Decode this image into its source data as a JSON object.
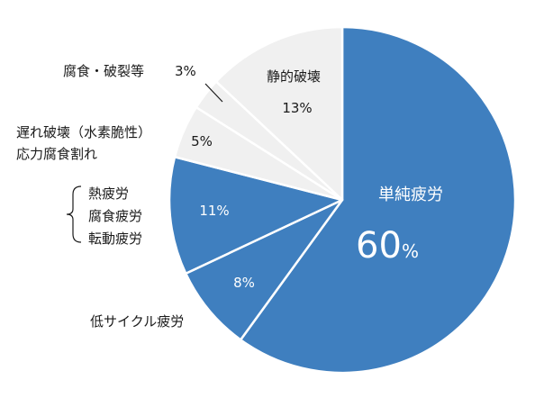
{
  "chart_data": {
    "type": "pie",
    "title": "",
    "slices": [
      {
        "label": "単純疲労",
        "value": 60,
        "value_text": "60",
        "unit": "%",
        "color": "#3f7fbf"
      },
      {
        "label": "低サイクル疲労",
        "value": 8,
        "value_text": "8%",
        "color": "#3f7fbf"
      },
      {
        "label": "熱疲労 / 腐食疲労 / 転動疲労",
        "lines": [
          "熱疲労",
          "腐食疲労",
          "転動疲労"
        ],
        "value": 11,
        "value_text": "11%",
        "color": "#3f7fbf"
      },
      {
        "label": "遅れ破壊（水素脆性）応力腐食割れ",
        "lines": [
          "遅れ破壊（水素脆性）",
          "応力腐食割れ"
        ],
        "value": 5,
        "value_text": "5%",
        "color": "#f0f0f0"
      },
      {
        "label": "腐食・破裂等",
        "value": 3,
        "value_text": "3%",
        "color": "#f0f0f0"
      },
      {
        "label": "静的破壊",
        "value": 13,
        "value_text": "13%",
        "color": "#f0f0f0"
      }
    ],
    "start_angle_deg": 0,
    "direction": "clockwise",
    "slice_border_color": "#ffffff"
  }
}
